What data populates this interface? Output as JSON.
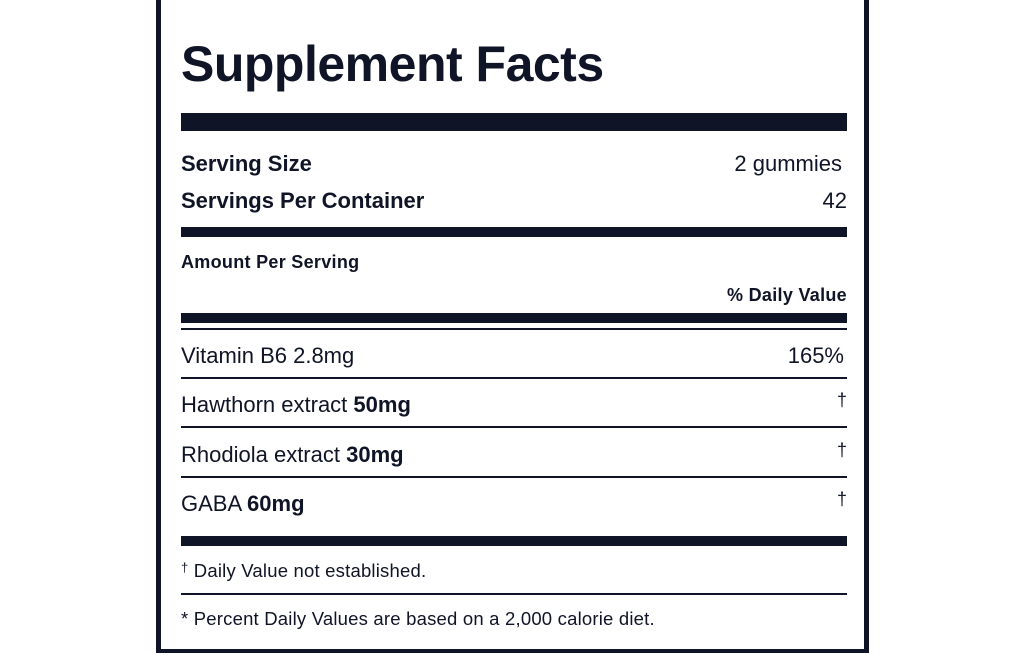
{
  "label": {
    "title": "Supplement Facts",
    "serving_size_label": "Serving Size",
    "serving_size_value": "2 gummies",
    "servings_per_container_label": "Servings Per Container",
    "servings_per_container_value": "42",
    "amount_per_serving": "Amount Per Serving",
    "daily_value_header": "% Daily Value",
    "ingredients": [
      {
        "name": "Vitamin B6 2.8mg",
        "amount": "",
        "dv": "165%"
      },
      {
        "name": "Hawthorn extract ",
        "amount": "50mg",
        "dv": "†"
      },
      {
        "name": "Rhodiola extract ",
        "amount": "30mg",
        "dv": "†"
      },
      {
        "name": "GABA ",
        "amount": "60mg",
        "dv": "†"
      }
    ],
    "footnote_dagger_symbol": "†",
    "footnote_dagger_text": " Daily Value not established.",
    "footnote_percent": "* Percent Daily Values are based on a 2,000 calorie diet."
  },
  "colors": {
    "ink": "#0f1426",
    "background": "#ffffff"
  }
}
